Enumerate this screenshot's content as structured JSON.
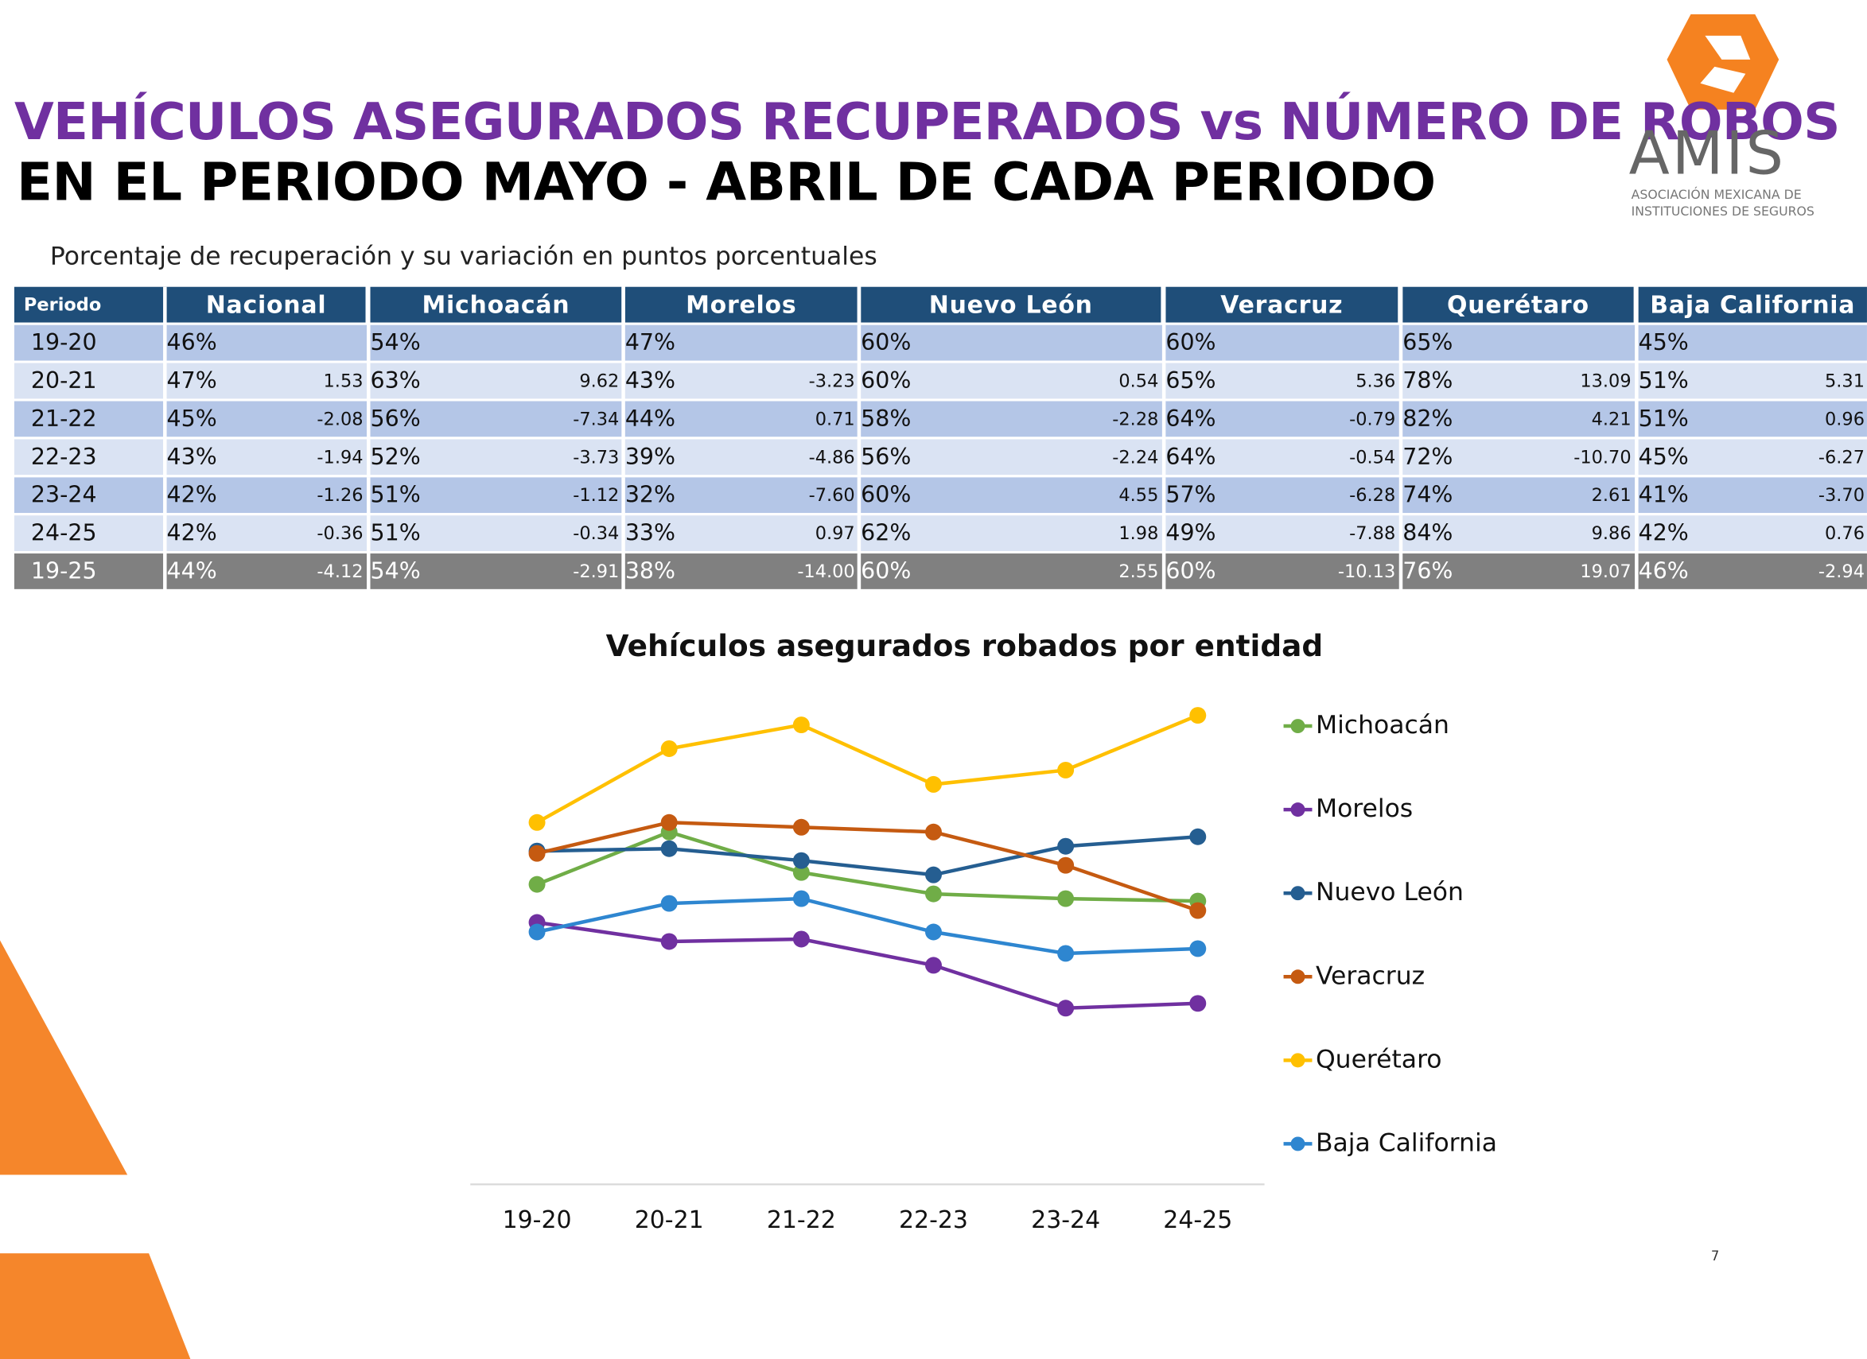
{
  "header": {
    "title_line1": "VEHÍCULOS ASEGURADOS RECUPERADOS vs NÚMERO DE ROBOS",
    "title_line2": "EN EL PERIODO MAYO - ABRIL DE CADA PERIODO",
    "subtitle": "Porcentaje de recuperación y su variación en puntos porcentuales"
  },
  "logo": {
    "name": "AMIS",
    "line1": "ASOCIACIÓN MEXICANA DE",
    "line2": "INSTITUCIONES DE SEGUROS"
  },
  "table": {
    "period_header": "Periodo",
    "columns": [
      "Nacional",
      "Michoacán",
      "Morelos",
      "Nuevo León",
      "Veracruz",
      "Querétaro",
      "Baja California"
    ],
    "rows": [
      {
        "period": "19-20",
        "cells": [
          {
            "pct": "46%"
          },
          {
            "pct": "54%"
          },
          {
            "pct": "47%"
          },
          {
            "pct": "60%"
          },
          {
            "pct": "60%"
          },
          {
            "pct": "65%"
          },
          {
            "pct": "45%"
          }
        ]
      },
      {
        "period": "20-21",
        "cells": [
          {
            "pct": "47%",
            "var": "1.53"
          },
          {
            "pct": "63%",
            "var": "9.62"
          },
          {
            "pct": "43%",
            "var": "-3.23"
          },
          {
            "pct": "60%",
            "var": "0.54"
          },
          {
            "pct": "65%",
            "var": "5.36"
          },
          {
            "pct": "78%",
            "var": "13.09"
          },
          {
            "pct": "51%",
            "var": "5.31"
          }
        ]
      },
      {
        "period": "21-22",
        "cells": [
          {
            "pct": "45%",
            "var": "-2.08"
          },
          {
            "pct": "56%",
            "var": "-7.34"
          },
          {
            "pct": "44%",
            "var": "0.71"
          },
          {
            "pct": "58%",
            "var": "-2.28"
          },
          {
            "pct": "64%",
            "var": "-0.79"
          },
          {
            "pct": "82%",
            "var": "4.21"
          },
          {
            "pct": "51%",
            "var": "0.96"
          }
        ]
      },
      {
        "period": "22-23",
        "cells": [
          {
            "pct": "43%",
            "var": "-1.94"
          },
          {
            "pct": "52%",
            "var": "-3.73"
          },
          {
            "pct": "39%",
            "var": "-4.86"
          },
          {
            "pct": "56%",
            "var": "-2.24"
          },
          {
            "pct": "64%",
            "var": "-0.54"
          },
          {
            "pct": "72%",
            "var": "-10.70"
          },
          {
            "pct": "45%",
            "var": "-6.27"
          }
        ]
      },
      {
        "period": "23-24",
        "cells": [
          {
            "pct": "42%",
            "var": "-1.26"
          },
          {
            "pct": "51%",
            "var": "-1.12"
          },
          {
            "pct": "32%",
            "var": "-7.60"
          },
          {
            "pct": "60%",
            "var": "4.55"
          },
          {
            "pct": "57%",
            "var": "-6.28"
          },
          {
            "pct": "74%",
            "var": "2.61"
          },
          {
            "pct": "41%",
            "var": "-3.70"
          }
        ]
      },
      {
        "period": "24-25",
        "cells": [
          {
            "pct": "42%",
            "var": "-0.36"
          },
          {
            "pct": "51%",
            "var": "-0.34"
          },
          {
            "pct": "33%",
            "var": "0.97"
          },
          {
            "pct": "62%",
            "var": "1.98"
          },
          {
            "pct": "49%",
            "var": "-7.88"
          },
          {
            "pct": "84%",
            "var": "9.86"
          },
          {
            "pct": "42%",
            "var": "0.76"
          }
        ]
      },
      {
        "period": "19-25",
        "cells": [
          {
            "pct": "44%",
            "var": "-4.12"
          },
          {
            "pct": "54%",
            "var": "-2.91"
          },
          {
            "pct": "38%",
            "var": "-14.00"
          },
          {
            "pct": "60%",
            "var": "2.55"
          },
          {
            "pct": "60%",
            "var": "-10.13"
          },
          {
            "pct": "76%",
            "var": "19.07"
          },
          {
            "pct": "46%",
            "var": "-2.94"
          }
        ]
      }
    ]
  },
  "chart_data": {
    "type": "line",
    "title": "Vehículos asegurados robados por entidad",
    "categories": [
      "19-20",
      "20-21",
      "21-22",
      "22-23",
      "23-24",
      "24-25"
    ],
    "ylim": [
      0,
      100
    ],
    "legend": "right",
    "series": [
      {
        "name": "Michoacán",
        "color": "#70ad47",
        "values": [
          63,
          74,
          65.5,
          61,
          60,
          59.5
        ]
      },
      {
        "name": "Morelos",
        "color": "#7030a0",
        "values": [
          55,
          51,
          51.5,
          46,
          37,
          38
        ]
      },
      {
        "name": "Nuevo León",
        "color": "#255e91",
        "values": [
          70,
          70.5,
          68,
          65,
          71,
          73
        ]
      },
      {
        "name": "Veracruz",
        "color": "#c55a11",
        "values": [
          69.5,
          76,
          75,
          74,
          67,
          57.5
        ]
      },
      {
        "name": "Querétaro",
        "color": "#ffc000",
        "values": [
          76,
          91.5,
          96.5,
          84,
          87,
          98.5
        ]
      },
      {
        "name": "Baja California",
        "color": "#2e86d0",
        "values": [
          53,
          59,
          60,
          53,
          48.5,
          49.5
        ]
      }
    ]
  },
  "page_number": "7"
}
